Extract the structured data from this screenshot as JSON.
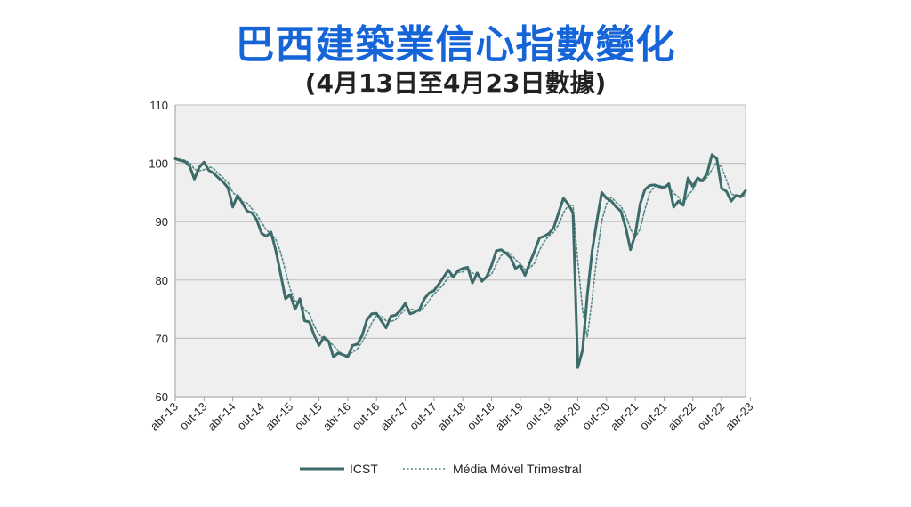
{
  "header": {
    "title": "巴西建築業信心指數變化",
    "subtitle": "(4月13日至4月23日數據)"
  },
  "colors": {
    "title": "#1565d8",
    "icst_line": "#3d6b69",
    "moving_avg_line": "#4f8a86",
    "plot_bg": "#efefef",
    "grid": "#bdbdbd"
  },
  "chart_data": {
    "type": "line",
    "ylim": [
      60,
      110
    ],
    "yticks": [
      60,
      70,
      80,
      90,
      100,
      110
    ],
    "x_tick_labels": [
      "abr-13",
      "out-13",
      "abr-14",
      "out-14",
      "abr-15",
      "out-15",
      "abr-16",
      "out-16",
      "abr-17",
      "out-17",
      "abr-18",
      "out-18",
      "abr-19",
      "out-19",
      "abr-20",
      "out-20",
      "abr-21",
      "out-21",
      "abr-22",
      "out-22",
      "abr-23"
    ],
    "x_tick_step_months": 6,
    "grid": true,
    "legend_position": "bottom",
    "series": [
      {
        "name": "ICST",
        "style": "solid",
        "values": [
          100.8,
          100.5,
          100.3,
          99.5,
          97.3,
          99.3,
          100.2,
          98.8,
          98.3,
          97.5,
          96.8,
          95.8,
          92.5,
          94.5,
          93.2,
          91.8,
          91.5,
          90.3,
          88.0,
          87.5,
          88.2,
          85.0,
          81.0,
          76.8,
          77.5,
          75.0,
          76.8,
          73.0,
          72.8,
          70.5,
          68.8,
          70.2,
          69.5,
          66.8,
          67.5,
          67.2,
          66.8,
          68.8,
          69.0,
          70.5,
          73.2,
          74.2,
          74.3,
          73.0,
          71.8,
          73.8,
          74.0,
          74.8,
          76.0,
          74.2,
          74.5,
          75.0,
          76.8,
          77.8,
          78.2,
          79.3,
          80.5,
          81.7,
          80.5,
          81.6,
          82.0,
          82.2,
          79.5,
          81.2,
          79.8,
          80.6,
          82.5,
          85.0,
          85.2,
          84.6,
          83.8,
          82.0,
          82.5,
          80.8,
          83.0,
          85.0,
          87.2,
          87.5,
          88.0,
          89.0,
          91.5,
          94.0,
          93.0,
          91.5,
          65.0,
          68.0,
          77.5,
          85.0,
          90.2,
          95.0,
          94.0,
          93.5,
          92.5,
          91.8,
          89.0,
          85.2,
          87.8,
          93.0,
          95.5,
          96.2,
          96.3,
          96.0,
          95.8,
          96.5,
          92.5,
          93.5,
          92.8,
          97.5,
          96.0,
          97.5,
          97.0,
          98.3,
          101.5,
          100.8,
          95.7,
          95.2,
          93.5,
          94.5,
          94.3,
          95.3
        ]
      },
      {
        "name": "Média Móvel Trimestral",
        "style": "dotted",
        "values": [
          100.8,
          100.7,
          100.5,
          100.1,
          99.0,
          98.7,
          98.9,
          99.4,
          99.1,
          98.2,
          97.5,
          96.7,
          95.0,
          94.3,
          93.4,
          93.2,
          92.2,
          91.2,
          89.9,
          88.6,
          87.9,
          86.9,
          84.7,
          81.6,
          78.4,
          76.4,
          76.4,
          74.9,
          74.2,
          72.1,
          70.7,
          69.8,
          69.5,
          68.8,
          67.9,
          67.2,
          67.2,
          67.6,
          68.2,
          69.4,
          70.9,
          72.6,
          73.9,
          73.8,
          73.0,
          72.9,
          73.2,
          74.2,
          74.9,
          75.0,
          74.9,
          74.6,
          75.4,
          76.5,
          77.6,
          78.4,
          79.3,
          80.5,
          80.9,
          81.3,
          81.4,
          81.9,
          81.2,
          81.0,
          80.2,
          80.5,
          81.0,
          82.7,
          84.2,
          84.9,
          84.5,
          83.5,
          82.8,
          81.8,
          82.1,
          82.9,
          85.1,
          86.6,
          87.6,
          88.2,
          89.5,
          91.5,
          92.8,
          92.8,
          83.2,
          74.8,
          70.2,
          76.8,
          84.2,
          90.1,
          93.1,
          94.2,
          93.3,
          92.6,
          91.1,
          88.7,
          87.3,
          88.7,
          92.1,
          94.9,
          96.0,
          96.2,
          96.0,
          96.1,
          94.9,
          94.2,
          92.9,
          94.6,
          95.4,
          97.0,
          96.8,
          97.6,
          98.9,
          100.2,
          99.3,
          97.2,
          94.8,
          94.4,
          94.1,
          94.7
        ]
      }
    ]
  }
}
